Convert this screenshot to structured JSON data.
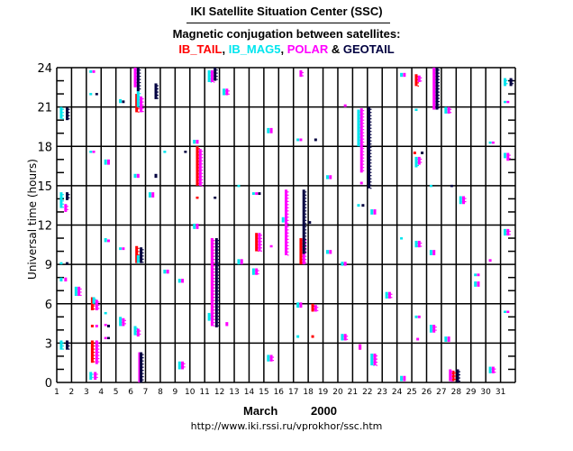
{
  "header": {
    "title": "IKI Satellite Situation Center (SSC)",
    "subtitle": "Magnetic conjugation between satellites:"
  },
  "legend": [
    {
      "label": "IB_TAIL",
      "sep": ", ",
      "color": "#ff0000"
    },
    {
      "label": "IB_MAG5",
      "sep": ", ",
      "color": "#00e5ee"
    },
    {
      "label": "POLAR",
      "sep": " & ",
      "color": "#ff00ff"
    },
    {
      "label": "GEOTAIL",
      "sep": "",
      "color": "#000040"
    }
  ],
  "footer": {
    "month": "March",
    "year": "2000",
    "url": "http://www.iki.rssi.ru/vprokhor/ssc.htm"
  },
  "chart_data": {
    "type": "scatter",
    "title": "Magnetic conjugation between satellites",
    "xlabel": "March 2000",
    "ylabel": "Universal time  (hours)",
    "xlim": [
      1,
      32
    ],
    "ylim": [
      0,
      24
    ],
    "x_ticks": [
      "1",
      "2",
      "3",
      "4",
      "5",
      "6",
      "7",
      "8",
      "9",
      "10",
      "11",
      "12",
      "13",
      "14",
      "15",
      "16",
      "17",
      "18",
      "19",
      "20",
      "21",
      "22",
      "23",
      "24",
      "25",
      "26",
      "27",
      "28",
      "29",
      "30",
      "31"
    ],
    "y_ticks": [
      "0",
      "3",
      "6",
      "9",
      "12",
      "15",
      "18",
      "21",
      "24"
    ],
    "grid": true,
    "series": [
      {
        "name": "IB_TAIL",
        "color": "#ff0000",
        "segments": [
          [
            3.4,
            5.5,
            6.5
          ],
          [
            3.4,
            4.2,
            4.4
          ],
          [
            3.4,
            1.5,
            3.2
          ],
          [
            6.4,
            20.6,
            22.0
          ],
          [
            6.4,
            9.1,
            10.4
          ],
          [
            10.5,
            14.0,
            14.1
          ],
          [
            10.5,
            15.0,
            18.0
          ],
          [
            11.5,
            4.8,
            11.0
          ],
          [
            14.5,
            10.0,
            11.4
          ],
          [
            17.5,
            9.0,
            11.0
          ],
          [
            18.3,
            5.4,
            6.0
          ],
          [
            18.3,
            3.4,
            3.6
          ],
          [
            22.1,
            15.1,
            15.3
          ],
          [
            25.3,
            22.6,
            23.5
          ],
          [
            25.2,
            17.4,
            17.6
          ],
          [
            21.5,
            2.5,
            2.9
          ],
          [
            27.8,
            0.1,
            0.9
          ]
        ]
      },
      {
        "name": "IB_MAG5",
        "color": "#00e5ee",
        "segments": [
          [
            1.3,
            20.1,
            21.0
          ],
          [
            1.3,
            13.3,
            14.5
          ],
          [
            1.3,
            9.0,
            9.1
          ],
          [
            1.3,
            7.7,
            8.0
          ],
          [
            1.3,
            2.5,
            3.2
          ],
          [
            2.3,
            6.6,
            7.3
          ],
          [
            3.3,
            23.6,
            23.8
          ],
          [
            3.3,
            21.9,
            22.0
          ],
          [
            3.3,
            17.5,
            17.6
          ],
          [
            3.5,
            6.0,
            6.5
          ],
          [
            3.3,
            0.2,
            0.8
          ],
          [
            4.3,
            16.6,
            17.0
          ],
          [
            4.3,
            10.7,
            11.0
          ],
          [
            4.3,
            5.2,
            5.3
          ],
          [
            5.3,
            21.3,
            21.6
          ],
          [
            5.3,
            10.1,
            10.3
          ],
          [
            5.3,
            4.3,
            5.0
          ],
          [
            6.5,
            21.0,
            22.2
          ],
          [
            6.3,
            15.6,
            15.9
          ],
          [
            6.5,
            9.1,
            9.7
          ],
          [
            6.3,
            3.6,
            4.3
          ],
          [
            7.3,
            14.1,
            14.5
          ],
          [
            8.3,
            8.3,
            8.6
          ],
          [
            8.3,
            17.5,
            17.6
          ],
          [
            9.3,
            7.6,
            7.9
          ],
          [
            9.3,
            1.0,
            1.6
          ],
          [
            10.3,
            18.2,
            18.5
          ],
          [
            10.3,
            11.7,
            12.1
          ],
          [
            11.3,
            22.9,
            23.8
          ],
          [
            11.3,
            4.7,
            5.3
          ],
          [
            12.3,
            21.9,
            22.4
          ],
          [
            13.3,
            9.0,
            9.4
          ],
          [
            13.3,
            14.9,
            15.0
          ],
          [
            14.3,
            14.3,
            14.5
          ],
          [
            14.3,
            8.2,
            8.7
          ],
          [
            15.3,
            19.0,
            19.4
          ],
          [
            15.3,
            1.6,
            2.1
          ],
          [
            16.3,
            12.2,
            12.6
          ],
          [
            17.3,
            18.4,
            18.6
          ],
          [
            17.3,
            5.7,
            6.1
          ],
          [
            17.3,
            3.4,
            3.6
          ],
          [
            19.3,
            15.5,
            15.8
          ],
          [
            19.3,
            9.8,
            10.1
          ],
          [
            20.3,
            3.2,
            3.7
          ],
          [
            20.3,
            8.9,
            9.2
          ],
          [
            21.4,
            13.4,
            13.6
          ],
          [
            21.4,
            18.0,
            20.8
          ],
          [
            22.3,
            12.8,
            13.2
          ],
          [
            22.3,
            1.3,
            2.2
          ],
          [
            23.3,
            6.4,
            6.9
          ],
          [
            24.3,
            23.3,
            23.6
          ],
          [
            24.3,
            10.9,
            11.0
          ],
          [
            24.3,
            0.1,
            0.5
          ],
          [
            25.3,
            16.4,
            17.2
          ],
          [
            25.3,
            20.7,
            20.8
          ],
          [
            25.3,
            10.3,
            10.8
          ],
          [
            25.3,
            4.9,
            5.1
          ],
          [
            26.3,
            14.9,
            15.0
          ],
          [
            26.3,
            9.7,
            10.1
          ],
          [
            26.3,
            3.8,
            4.4
          ],
          [
            27.3,
            20.5,
            21.0
          ],
          [
            27.3,
            3.1,
            3.5
          ],
          [
            28.3,
            13.6,
            14.2
          ],
          [
            29.3,
            8.1,
            8.3
          ],
          [
            29.3,
            7.3,
            7.7
          ],
          [
            30.3,
            18.2,
            18.3
          ],
          [
            30.3,
            0.7,
            1.2
          ],
          [
            31.3,
            22.6,
            23.2
          ],
          [
            31.3,
            21.3,
            21.4
          ],
          [
            31.3,
            17.1,
            17.5
          ],
          [
            31.3,
            11.2,
            11.7
          ],
          [
            31.3,
            5.3,
            5.4
          ]
        ]
      },
      {
        "name": "POLAR",
        "color": "#ff00ff",
        "segments": [
          [
            1.6,
            13.0,
            13.6
          ],
          [
            1.6,
            7.7,
            8.0
          ],
          [
            2.5,
            6.6,
            7.3
          ],
          [
            3.5,
            23.6,
            23.8
          ],
          [
            3.5,
            17.5,
            17.6
          ],
          [
            3.7,
            5.5,
            6.3
          ],
          [
            3.7,
            4.2,
            4.4
          ],
          [
            3.7,
            1.4,
            3.2
          ],
          [
            3.6,
            0.2,
            0.8
          ],
          [
            4.5,
            16.6,
            17.0
          ],
          [
            4.5,
            10.7,
            10.9
          ],
          [
            4.3,
            4.3,
            4.4
          ],
          [
            4.3,
            3.3,
            3.4
          ],
          [
            5.5,
            10.1,
            10.3
          ],
          [
            5.5,
            4.3,
            4.9
          ],
          [
            6.3,
            22.5,
            24.0
          ],
          [
            6.7,
            20.6,
            21.8
          ],
          [
            6.5,
            15.6,
            15.9
          ],
          [
            6.5,
            3.5,
            4.1
          ],
          [
            6.6,
            0.0,
            2.3
          ],
          [
            7.5,
            14.1,
            14.5
          ],
          [
            8.5,
            8.3,
            8.6
          ],
          [
            9.5,
            7.6,
            7.9
          ],
          [
            9.5,
            1.0,
            1.6
          ],
          [
            10.5,
            18.2,
            18.5
          ],
          [
            10.7,
            15.0,
            17.8
          ],
          [
            10.5,
            11.7,
            12.1
          ],
          [
            11.5,
            22.9,
            23.8
          ],
          [
            11.5,
            4.3,
            11.0
          ],
          [
            12.5,
            21.9,
            22.4
          ],
          [
            12.5,
            4.3,
            4.6
          ],
          [
            13.5,
            9.0,
            9.4
          ],
          [
            14.5,
            14.3,
            14.5
          ],
          [
            14.7,
            10.0,
            11.4
          ],
          [
            14.5,
            8.2,
            8.7
          ],
          [
            15.5,
            19.0,
            19.4
          ],
          [
            15.5,
            10.3,
            10.4
          ],
          [
            15.5,
            1.6,
            2.1
          ],
          [
            16.5,
            9.7,
            14.7
          ],
          [
            17.5,
            23.3,
            23.8
          ],
          [
            17.5,
            18.4,
            18.6
          ],
          [
            17.7,
            9.0,
            11.0
          ],
          [
            17.5,
            5.7,
            6.1
          ],
          [
            18.5,
            5.4,
            5.9
          ],
          [
            19.5,
            15.5,
            15.8
          ],
          [
            19.5,
            9.8,
            10.1
          ],
          [
            20.5,
            21.0,
            21.2
          ],
          [
            20.5,
            3.2,
            3.7
          ],
          [
            20.5,
            8.9,
            9.2
          ],
          [
            21.6,
            15.1,
            15.3
          ],
          [
            21.6,
            16.0,
            20.9
          ],
          [
            21.5,
            2.5,
            2.9
          ],
          [
            22.5,
            12.8,
            13.2
          ],
          [
            22.5,
            1.3,
            2.2
          ],
          [
            23.5,
            6.4,
            6.9
          ],
          [
            24.5,
            23.3,
            23.6
          ],
          [
            24.5,
            0.1,
            0.5
          ],
          [
            25.5,
            22.9,
            23.4
          ],
          [
            25.5,
            16.6,
            17.2
          ],
          [
            25.5,
            10.3,
            10.8
          ],
          [
            25.5,
            4.9,
            5.1
          ],
          [
            25.4,
            3.2,
            3.4
          ],
          [
            26.5,
            20.8,
            24.0
          ],
          [
            26.5,
            9.7,
            10.1
          ],
          [
            26.5,
            3.8,
            4.4
          ],
          [
            27.5,
            20.5,
            21.0
          ],
          [
            27.5,
            3.1,
            3.5
          ],
          [
            27.6,
            0.1,
            1.0
          ],
          [
            28.5,
            13.6,
            14.2
          ],
          [
            29.5,
            8.1,
            8.3
          ],
          [
            29.5,
            7.3,
            7.7
          ],
          [
            30.5,
            18.2,
            18.3
          ],
          [
            30.3,
            9.2,
            9.4
          ],
          [
            30.5,
            0.7,
            1.2
          ],
          [
            31.5,
            21.3,
            21.4
          ],
          [
            31.5,
            16.9,
            17.5
          ],
          [
            31.5,
            11.2,
            11.7
          ],
          [
            31.5,
            5.3,
            5.4
          ]
        ]
      },
      {
        "name": "GEOTAIL",
        "color": "#000040",
        "segments": [
          [
            1.7,
            20.0,
            21.0
          ],
          [
            1.7,
            13.9,
            14.5
          ],
          [
            1.7,
            9.0,
            9.1
          ],
          [
            1.7,
            2.5,
            3.2
          ],
          [
            3.7,
            21.9,
            22.0
          ],
          [
            4.5,
            4.2,
            4.4
          ],
          [
            4.5,
            3.3,
            3.4
          ],
          [
            5.5,
            21.3,
            21.5
          ],
          [
            6.5,
            22.2,
            24.0
          ],
          [
            6.7,
            9.1,
            10.3
          ],
          [
            6.7,
            0.0,
            2.3
          ],
          [
            7.7,
            21.6,
            22.8
          ],
          [
            7.7,
            15.6,
            15.9
          ],
          [
            9.7,
            17.5,
            17.6
          ],
          [
            11.7,
            14.0,
            14.1
          ],
          [
            11.7,
            23.0,
            24.0
          ],
          [
            11.8,
            4.2,
            11.0
          ],
          [
            14.7,
            14.3,
            14.5
          ],
          [
            17.7,
            9.8,
            14.7
          ],
          [
            18.1,
            12.1,
            12.3
          ],
          [
            18.5,
            18.4,
            18.6
          ],
          [
            21.7,
            13.4,
            13.6
          ],
          [
            22.1,
            14.8,
            21.0
          ],
          [
            25.7,
            17.4,
            17.6
          ],
          [
            26.7,
            20.8,
            24.0
          ],
          [
            27.7,
            14.9,
            15.0
          ],
          [
            28.1,
            0.0,
            1.0
          ],
          [
            31.7,
            22.6,
            23.2
          ]
        ]
      }
    ]
  }
}
